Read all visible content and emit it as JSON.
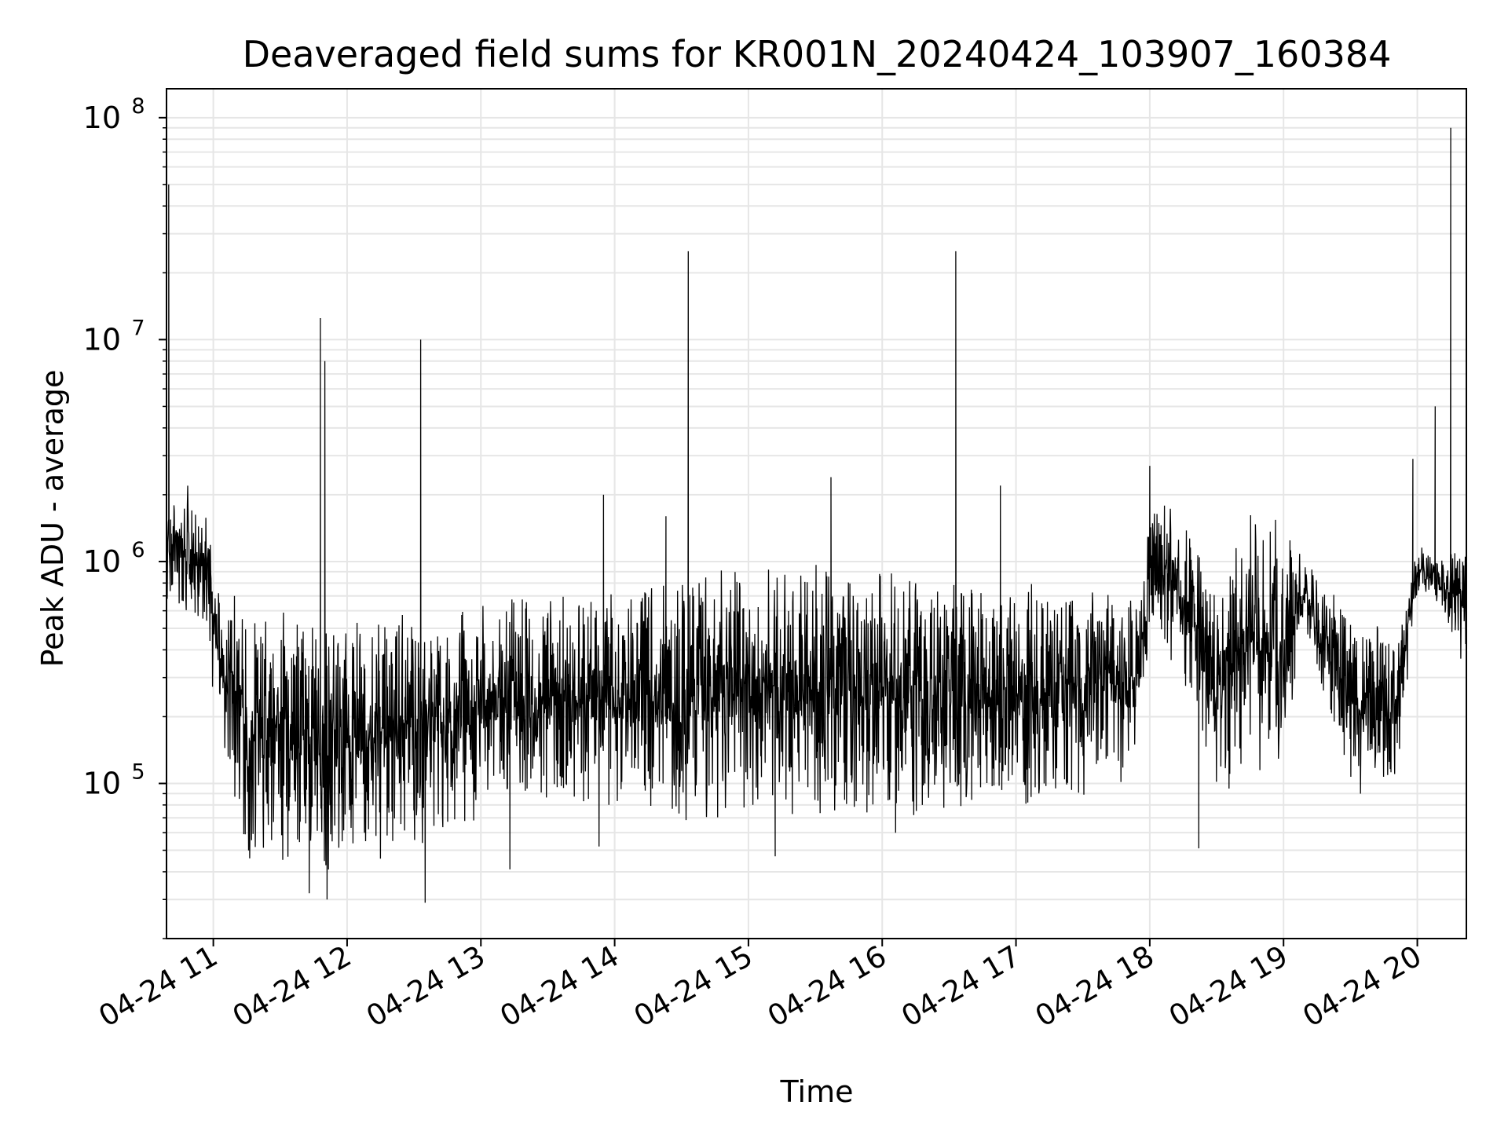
{
  "chart_data": {
    "type": "line",
    "title": "Deaveraged field sums for KR001N_20240424_103907_160384",
    "xlabel": "Time",
    "ylabel": "Peak ADU - average",
    "x_range": [
      "2024-04-24 10:39",
      "2024-04-24 20:22"
    ],
    "xticks": [
      {
        "time": "2024-04-24 11:00",
        "label": "04-24 11"
      },
      {
        "time": "2024-04-24 12:00",
        "label": "04-24 12"
      },
      {
        "time": "2024-04-24 13:00",
        "label": "04-24 13"
      },
      {
        "time": "2024-04-24 14:00",
        "label": "04-24 14"
      },
      {
        "time": "2024-04-24 15:00",
        "label": "04-24 15"
      },
      {
        "time": "2024-04-24 16:00",
        "label": "04-24 16"
      },
      {
        "time": "2024-04-24 17:00",
        "label": "04-24 17"
      },
      {
        "time": "2024-04-24 18:00",
        "label": "04-24 18"
      },
      {
        "time": "2024-04-24 19:00",
        "label": "04-24 19"
      },
      {
        "time": "2024-04-24 20:00",
        "label": "04-24 20"
      }
    ],
    "yscale": "log",
    "ylim": [
      20000,
      135000000
    ],
    "yticks": [
      {
        "value": 100000,
        "base": "10",
        "exp": "5"
      },
      {
        "value": 1000000,
        "base": "10",
        "exp": "6"
      },
      {
        "value": 10000000,
        "base": "10",
        "exp": "7"
      },
      {
        "value": 100000000,
        "base": "10",
        "exp": "8"
      }
    ],
    "grid": true,
    "line_color": "#000000",
    "grid_color": "#e6e6e6",
    "envelope": [
      {
        "t": "2024-04-24 10:39",
        "low": 650000,
        "high": 2000000
      },
      {
        "t": "2024-04-24 10:55",
        "low": 500000,
        "high": 2400000
      },
      {
        "t": "2024-04-24 11:02",
        "low": 200000,
        "high": 800000
      },
      {
        "t": "2024-04-24 11:15",
        "low": 45000,
        "high": 700000
      },
      {
        "t": "2024-04-24 11:30",
        "low": 38000,
        "high": 650000
      },
      {
        "t": "2024-04-24 11:45",
        "low": 36000,
        "high": 600000
      },
      {
        "t": "2024-04-24 12:00",
        "low": 40000,
        "high": 580000
      },
      {
        "t": "2024-04-24 12:30",
        "low": 45000,
        "high": 600000
      },
      {
        "t": "2024-04-24 13:00",
        "low": 70000,
        "high": 700000
      },
      {
        "t": "2024-04-24 13:30",
        "low": 80000,
        "high": 750000
      },
      {
        "t": "2024-04-24 14:00",
        "low": 70000,
        "high": 750000
      },
      {
        "t": "2024-04-24 14:30",
        "low": 65000,
        "high": 850000
      },
      {
        "t": "2024-04-24 15:00",
        "low": 70000,
        "high": 1000000
      },
      {
        "t": "2024-04-24 15:30",
        "low": 70000,
        "high": 1000000
      },
      {
        "t": "2024-04-24 16:00",
        "low": 70000,
        "high": 900000
      },
      {
        "t": "2024-04-24 16:30",
        "low": 70000,
        "high": 850000
      },
      {
        "t": "2024-04-24 17:00",
        "low": 75000,
        "high": 850000
      },
      {
        "t": "2024-04-24 17:30",
        "low": 85000,
        "high": 750000
      },
      {
        "t": "2024-04-24 17:55",
        "low": 100000,
        "high": 700000
      },
      {
        "t": "2024-04-24 18:00",
        "low": 500000,
        "high": 2000000
      },
      {
        "t": "2024-04-24 18:20",
        "low": 200000,
        "high": 1500000
      },
      {
        "t": "2024-04-24 18:30",
        "low": 90000,
        "high": 700000
      },
      {
        "t": "2024-04-24 18:45",
        "low": 100000,
        "high": 2000000
      },
      {
        "t": "2024-04-24 19:00",
        "low": 100000,
        "high": 1500000
      },
      {
        "t": "2024-04-24 19:10",
        "low": 500000,
        "high": 1000000
      },
      {
        "t": "2024-04-24 19:30",
        "low": 80000,
        "high": 600000
      },
      {
        "t": "2024-04-24 19:50",
        "low": 90000,
        "high": 500000
      },
      {
        "t": "2024-04-24 20:00",
        "low": 700000,
        "high": 1200000
      },
      {
        "t": "2024-04-24 20:10",
        "low": 650000,
        "high": 1000000
      },
      {
        "t": "2024-04-24 20:22",
        "low": 300000,
        "high": 1400000
      }
    ],
    "spikes": [
      {
        "t": "2024-04-24 10:40",
        "value": 50000000
      },
      {
        "t": "2024-04-24 11:48",
        "value": 12500000
      },
      {
        "t": "2024-04-24 11:50",
        "value": 8000000
      },
      {
        "t": "2024-04-24 12:33",
        "value": 10000000
      },
      {
        "t": "2024-04-24 13:55",
        "value": 2000000
      },
      {
        "t": "2024-04-24 14:23",
        "value": 1600000
      },
      {
        "t": "2024-04-24 14:33",
        "value": 25000000
      },
      {
        "t": "2024-04-24 15:37",
        "value": 2400000
      },
      {
        "t": "2024-04-24 16:33",
        "value": 25000000
      },
      {
        "t": "2024-04-24 16:53",
        "value": 2200000
      },
      {
        "t": "2024-04-24 18:00",
        "value": 2700000
      },
      {
        "t": "2024-04-24 19:58",
        "value": 2900000
      },
      {
        "t": "2024-04-24 20:08",
        "value": 5000000
      },
      {
        "t": "2024-04-24 20:15",
        "value": 90000000
      }
    ],
    "dips": [
      {
        "t": "2024-04-24 11:43",
        "value": 32000
      },
      {
        "t": "2024-04-24 11:51",
        "value": 30000
      },
      {
        "t": "2024-04-24 12:35",
        "value": 29000
      },
      {
        "t": "2024-04-24 13:13",
        "value": 41000
      },
      {
        "t": "2024-04-24 15:12",
        "value": 47000
      },
      {
        "t": "2024-04-24 18:22",
        "value": 51000
      },
      {
        "t": "2024-04-24 13:53",
        "value": 52000
      },
      {
        "t": "2024-04-24 16:06",
        "value": 60000
      }
    ]
  }
}
